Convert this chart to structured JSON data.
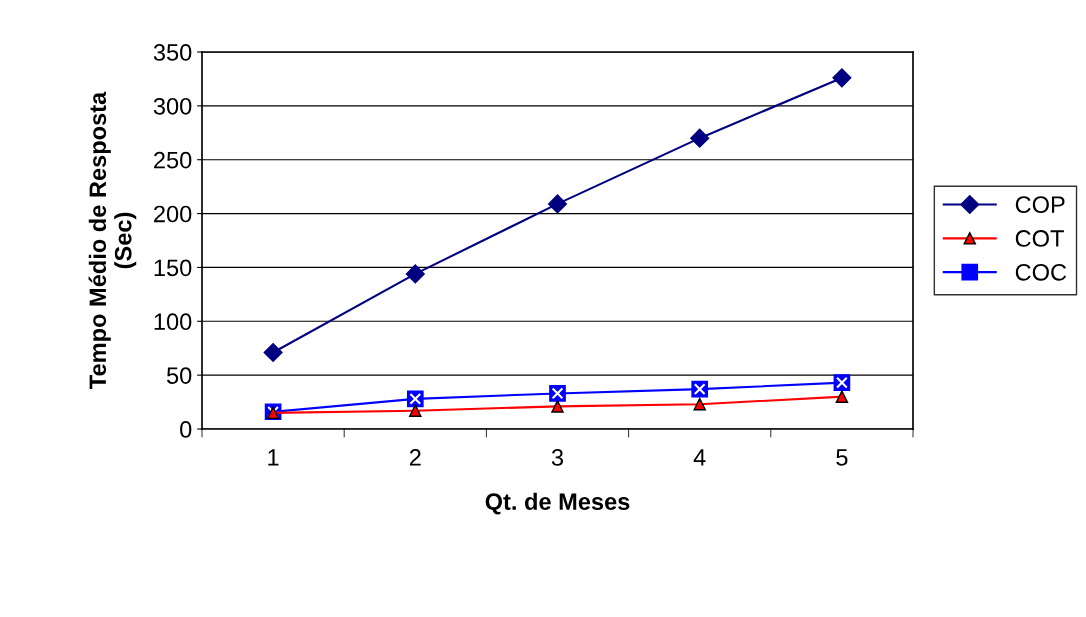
{
  "chart_data": {
    "type": "line",
    "xlabel": "Qt. de Meses",
    "ylabel": "Tempo Médio de Resposta\n(Sec)",
    "categories": [
      "1",
      "2",
      "3",
      "4",
      "5"
    ],
    "series": [
      {
        "name": "COP",
        "color": "#000080",
        "marker": "diamond",
        "values": [
          71,
          144,
          209,
          270,
          326
        ]
      },
      {
        "name": "COT",
        "color": "#ff0000",
        "marker": "triangle",
        "values": [
          15,
          17,
          21,
          23,
          30
        ]
      },
      {
        "name": "COC",
        "color": "#0000ff",
        "marker": "square",
        "values": [
          16,
          28,
          33,
          37,
          43
        ]
      }
    ],
    "ylim": [
      0,
      350
    ],
    "yticks": [
      0,
      50,
      100,
      150,
      200,
      250,
      300,
      350
    ],
    "grid": "y",
    "legend": "right"
  }
}
